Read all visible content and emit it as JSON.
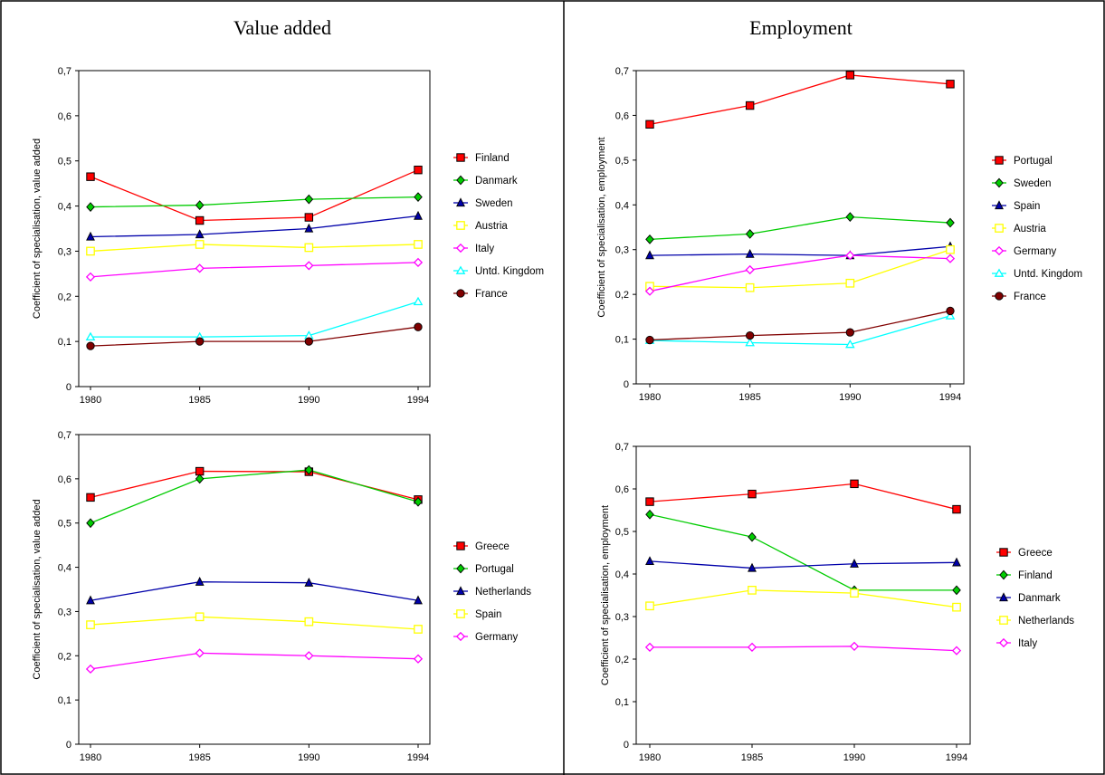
{
  "headers": {
    "left": "Value added",
    "right": "Employment"
  },
  "chart_data": [
    {
      "type": "line",
      "x": [
        "1980",
        "1985",
        "1990",
        "1994"
      ],
      "ylabel": "Coefficient of specialisation, value added",
      "ylim": [
        0,
        0.7
      ],
      "yticks": [
        "0",
        "0,1",
        "0,2",
        "0,3",
        "0,4",
        "0,5",
        "0,6",
        "0,7"
      ],
      "legend_position": "right",
      "series": [
        {
          "name": "Finland",
          "color": "#ff0000",
          "marker": "square",
          "values": [
            0.465,
            0.368,
            0.375,
            0.48
          ]
        },
        {
          "name": "Danmark",
          "color": "#00cc00",
          "marker": "diamond",
          "values": [
            0.398,
            0.402,
            0.415,
            0.42
          ]
        },
        {
          "name": "Sweden",
          "color": "#0000aa",
          "marker": "triangle",
          "values": [
            0.332,
            0.337,
            0.35,
            0.378
          ]
        },
        {
          "name": "Austria",
          "color": "#ffff00",
          "marker": "square-open",
          "values": [
            0.3,
            0.315,
            0.308,
            0.315
          ]
        },
        {
          "name": "Italy",
          "color": "#ff00ff",
          "marker": "diamond-open",
          "values": [
            0.243,
            0.262,
            0.268,
            0.275
          ]
        },
        {
          "name": "Untd. Kingdom",
          "color": "#00ffff",
          "marker": "triangle-open",
          "values": [
            0.11,
            0.11,
            0.113,
            0.188
          ]
        },
        {
          "name": "France",
          "color": "#800000",
          "marker": "circle",
          "values": [
            0.09,
            0.1,
            0.1,
            0.132
          ]
        }
      ]
    },
    {
      "type": "line",
      "x": [
        "1980",
        "1985",
        "1990",
        "1994"
      ],
      "ylabel": "Coefficient of specialisation, employment",
      "ylim": [
        0,
        0.7
      ],
      "yticks": [
        "0",
        "0,1",
        "0,2",
        "0,3",
        "0,4",
        "0,5",
        "0,6",
        "0,7"
      ],
      "legend_position": "right",
      "series": [
        {
          "name": "Portugal",
          "color": "#ff0000",
          "marker": "square",
          "values": [
            0.58,
            0.622,
            0.69,
            0.67
          ]
        },
        {
          "name": "Sweden",
          "color": "#00cc00",
          "marker": "diamond",
          "values": [
            0.323,
            0.335,
            0.373,
            0.36
          ]
        },
        {
          "name": "Spain",
          "color": "#0000aa",
          "marker": "triangle",
          "values": [
            0.287,
            0.29,
            0.287,
            0.307
          ]
        },
        {
          "name": "Austria",
          "color": "#ffff00",
          "marker": "square-open",
          "values": [
            0.218,
            0.215,
            0.225,
            0.3
          ]
        },
        {
          "name": "Germany",
          "color": "#ff00ff",
          "marker": "diamond-open",
          "values": [
            0.207,
            0.255,
            0.287,
            0.28
          ]
        },
        {
          "name": "Untd. Kingdom",
          "color": "#00ffff",
          "marker": "triangle-open",
          "values": [
            0.097,
            0.092,
            0.088,
            0.152
          ]
        },
        {
          "name": "France",
          "color": "#800000",
          "marker": "circle",
          "values": [
            0.098,
            0.108,
            0.115,
            0.163
          ]
        }
      ]
    },
    {
      "type": "line",
      "x": [
        "1980",
        "1985",
        "1990",
        "1994"
      ],
      "ylabel": "Coefficient of specialisation, value added",
      "ylim": [
        0,
        0.7
      ],
      "yticks": [
        "0",
        "0,1",
        "0,2",
        "0,3",
        "0,4",
        "0,5",
        "0,6",
        "0,7"
      ],
      "legend_position": "right",
      "series": [
        {
          "name": "Greece",
          "color": "#ff0000",
          "marker": "square",
          "values": [
            0.558,
            0.617,
            0.616,
            0.553
          ]
        },
        {
          "name": "Portugal",
          "color": "#00cc00",
          "marker": "diamond",
          "values": [
            0.5,
            0.6,
            0.62,
            0.548
          ]
        },
        {
          "name": "Netherlands",
          "color": "#0000aa",
          "marker": "triangle",
          "values": [
            0.325,
            0.367,
            0.365,
            0.325
          ]
        },
        {
          "name": "Spain",
          "color": "#ffff00",
          "marker": "square-open",
          "values": [
            0.27,
            0.288,
            0.277,
            0.26
          ]
        },
        {
          "name": "Germany",
          "color": "#ff00ff",
          "marker": "diamond-open",
          "values": [
            0.17,
            0.206,
            0.2,
            0.193
          ]
        }
      ]
    },
    {
      "type": "line",
      "x": [
        "1980",
        "1985",
        "1990",
        "1994"
      ],
      "ylabel": "Coefficient of specialisation, employment",
      "ylim": [
        0,
        0.7
      ],
      "yticks": [
        "0",
        "0,1",
        "0,2",
        "0,3",
        "0,4",
        "0,5",
        "0,6",
        "0,7"
      ],
      "legend_position": "right",
      "series": [
        {
          "name": "Greece",
          "color": "#ff0000",
          "marker": "square",
          "values": [
            0.57,
            0.588,
            0.612,
            0.552
          ]
        },
        {
          "name": "Finland",
          "color": "#00cc00",
          "marker": "diamond",
          "values": [
            0.54,
            0.487,
            0.362,
            0.362
          ]
        },
        {
          "name": "Danmark",
          "color": "#0000aa",
          "marker": "triangle",
          "values": [
            0.43,
            0.414,
            0.424,
            0.427
          ]
        },
        {
          "name": "Netherlands",
          "color": "#ffff00",
          "marker": "square-open",
          "values": [
            0.325,
            0.362,
            0.355,
            0.322
          ]
        },
        {
          "name": "Italy",
          "color": "#ff00ff",
          "marker": "diamond-open",
          "values": [
            0.228,
            0.228,
            0.23,
            0.22
          ]
        }
      ]
    }
  ]
}
